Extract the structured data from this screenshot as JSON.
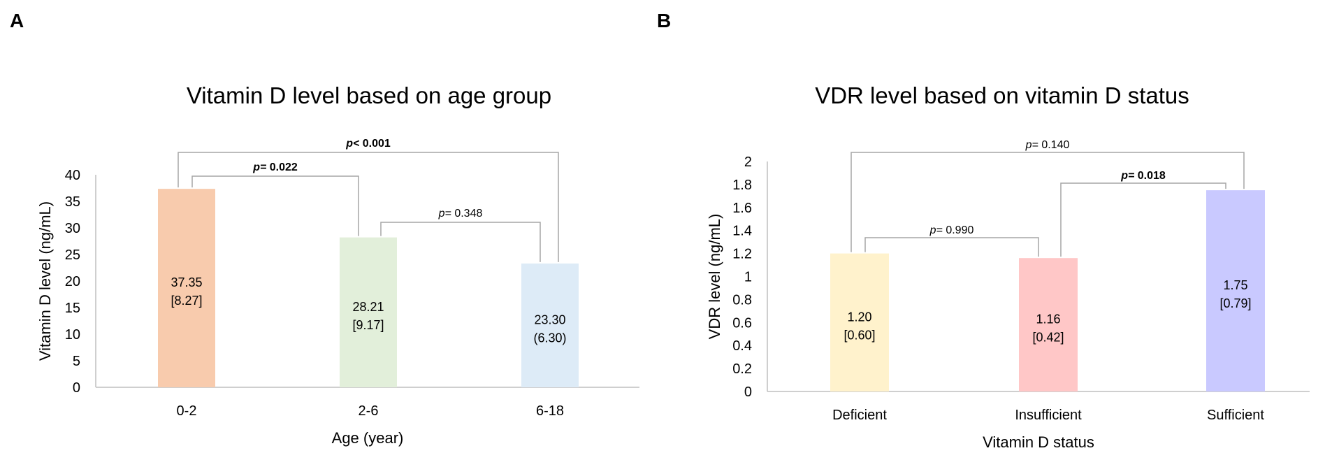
{
  "panels": {
    "a": {
      "letter": "A"
    },
    "b": {
      "letter": "B"
    }
  },
  "chart_data": [
    {
      "type": "bar",
      "title": "Vitamin D level based on age group",
      "xlabel": "Age (year)",
      "ylabel": "Vitamin D level (ng/mL)",
      "ylim": [
        0,
        40
      ],
      "yticks": [
        "0",
        "5",
        "10",
        "15",
        "20",
        "25",
        "30",
        "35",
        "40"
      ],
      "categories": [
        "0-2",
        "2-6",
        "6-18"
      ],
      "values": [
        37.35,
        28.21,
        23.3
      ],
      "value_labels": [
        "37.35",
        "28.21",
        "23.30"
      ],
      "spread_labels": [
        "[8.27]",
        "[9.17]",
        "(6.30)"
      ],
      "colors": [
        "#f8cbad",
        "#e2efda",
        "#ddebf7"
      ],
      "comparisons": [
        {
          "from": 0,
          "to": 1,
          "prefix": "p=",
          "value": " 0.022",
          "bold": true
        },
        {
          "from": 1,
          "to": 2,
          "prefix": "p=",
          "value": " 0.348",
          "bold": false
        },
        {
          "from": 0,
          "to": 2,
          "prefix": "p<",
          "value": " 0.001",
          "bold": true
        }
      ]
    },
    {
      "type": "bar",
      "title": "VDR level based on vitamin D status",
      "xlabel": "Vitamin D status",
      "ylabel": "VDR level (ng/mL)",
      "ylim": [
        0,
        2
      ],
      "yticks": [
        "0",
        "0.2",
        "0.4",
        "0.6",
        "0.8",
        "1",
        "1.2",
        "1.4",
        "1.6",
        "1.8",
        "2"
      ],
      "categories": [
        "Deficient",
        "Insufficient",
        "Sufficient"
      ],
      "values": [
        1.2,
        1.16,
        1.75
      ],
      "value_labels": [
        "1.20",
        "1.16",
        "1.75"
      ],
      "spread_labels": [
        "[0.60]",
        "[0.42]",
        "[0.79]"
      ],
      "colors": [
        "#fff2cc",
        "#ffc7c7",
        "#c9c9ff"
      ],
      "comparisons": [
        {
          "from": 0,
          "to": 1,
          "prefix": "p=",
          "value": " 0.990",
          "bold": false
        },
        {
          "from": 1,
          "to": 2,
          "prefix": "p=",
          "value": " 0.018",
          "bold": true
        },
        {
          "from": 0,
          "to": 2,
          "prefix": "p=",
          "value": " 0.140",
          "bold": false
        }
      ]
    }
  ]
}
